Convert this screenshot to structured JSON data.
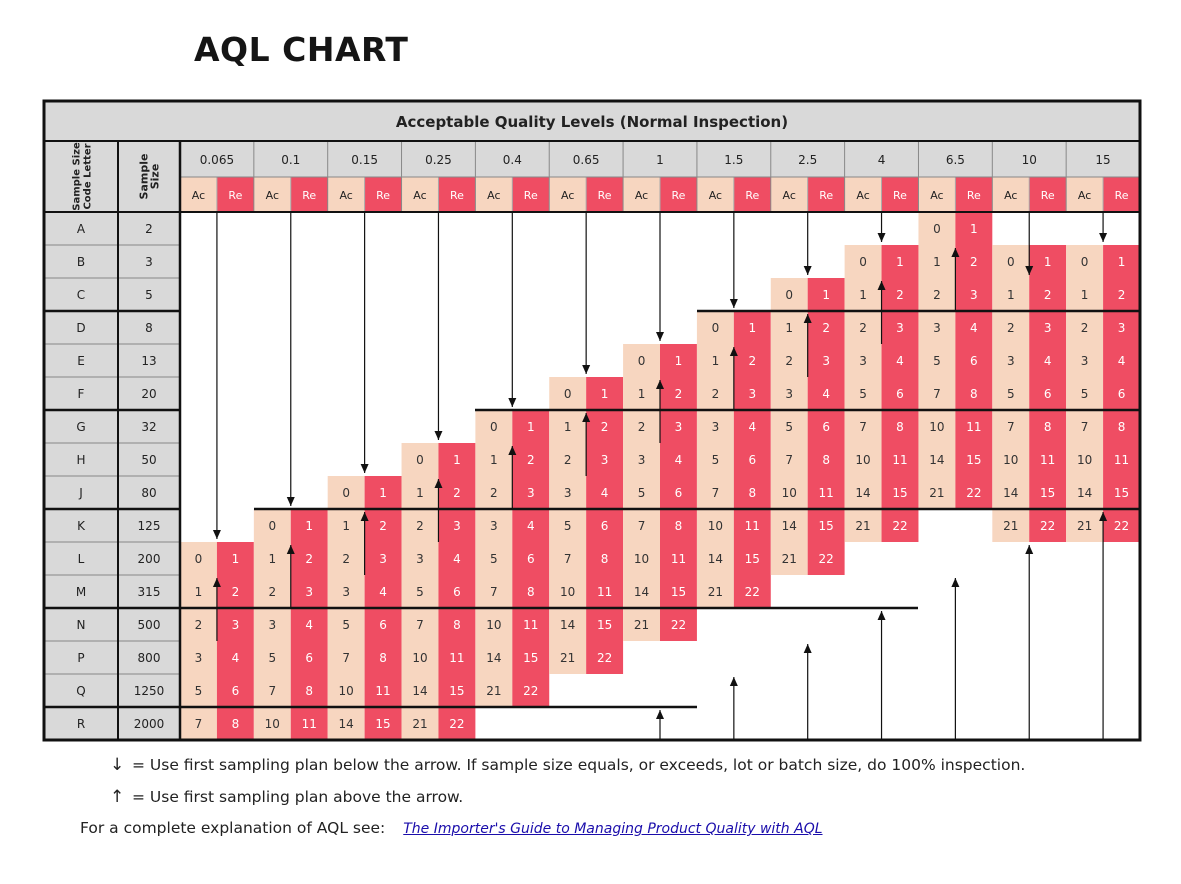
{
  "title": "AQL CHART",
  "table_title": "Acceptable Quality Levels (Normal Inspection)",
  "row_header_1": "Sample Size Code Letter",
  "row_header_2": "Sample Size",
  "ac_label": "Ac",
  "re_label": "Re",
  "aql_levels": [
    "0.065",
    "0.1",
    "0.15",
    "0.25",
    "0.4",
    "0.65",
    "1",
    "1.5",
    "2.5",
    "4",
    "6.5",
    "10",
    "15"
  ],
  "code_letters": [
    "A",
    "B",
    "C",
    "D",
    "E",
    "F",
    "G",
    "H",
    "J",
    "K",
    "L",
    "M",
    "N",
    "P",
    "Q",
    "R"
  ],
  "sample_sizes": [
    "2",
    "3",
    "5",
    "8",
    "13",
    "20",
    "32",
    "50",
    "80",
    "125",
    "200",
    "315",
    "500",
    "800",
    "1250",
    "2000"
  ],
  "acre_pairs": [
    [
      0,
      1
    ],
    [
      1,
      2
    ],
    [
      2,
      3
    ],
    [
      3,
      4
    ],
    [
      5,
      6
    ],
    [
      7,
      8
    ],
    [
      10,
      11
    ],
    [
      14,
      15
    ],
    [
      21,
      22
    ]
  ],
  "plan_start_rows": [
    10,
    9,
    8,
    7,
    6,
    5,
    4,
    3,
    2,
    1,
    0,
    1,
    1
  ],
  "arrows": [
    {
      "col": 0,
      "dir": "down",
      "from_row": 0,
      "to_row": 9
    },
    {
      "col": 0,
      "dir": "up",
      "from_row": 11,
      "to_row": 12
    },
    {
      "col": 1,
      "dir": "down",
      "from_row": 0,
      "to_row": 8
    },
    {
      "col": 1,
      "dir": "up",
      "from_row": 10,
      "to_row": 11
    },
    {
      "col": 2,
      "dir": "down",
      "from_row": 0,
      "to_row": 7
    },
    {
      "col": 2,
      "dir": "up",
      "from_row": 9,
      "to_row": 10
    },
    {
      "col": 3,
      "dir": "down",
      "from_row": 0,
      "to_row": 6
    },
    {
      "col": 3,
      "dir": "up",
      "from_row": 8,
      "to_row": 9
    },
    {
      "col": 4,
      "dir": "down",
      "from_row": 0,
      "to_row": 5
    },
    {
      "col": 4,
      "dir": "up",
      "from_row": 7,
      "to_row": 8
    },
    {
      "col": 5,
      "dir": "down",
      "from_row": 0,
      "to_row": 4
    },
    {
      "col": 5,
      "dir": "up",
      "from_row": 6,
      "to_row": 7
    },
    {
      "col": 6,
      "dir": "down",
      "from_row": 0,
      "to_row": 3
    },
    {
      "col": 6,
      "dir": "up",
      "from_row": 5,
      "to_row": 6
    },
    {
      "col": 6,
      "dir": "up",
      "from_row": 15,
      "to_row": 15
    },
    {
      "col": 7,
      "dir": "down",
      "from_row": 0,
      "to_row": 2
    },
    {
      "col": 7,
      "dir": "up",
      "from_row": 4,
      "to_row": 5
    },
    {
      "col": 7,
      "dir": "up",
      "from_row": 14,
      "to_row": 15
    },
    {
      "col": 8,
      "dir": "down",
      "from_row": 0,
      "to_row": 1
    },
    {
      "col": 8,
      "dir": "up",
      "from_row": 3,
      "to_row": 4
    },
    {
      "col": 8,
      "dir": "up",
      "from_row": 13,
      "to_row": 15
    },
    {
      "col": 9,
      "dir": "down",
      "from_row": 0,
      "to_row": 0
    },
    {
      "col": 9,
      "dir": "up",
      "from_row": 2,
      "to_row": 3
    },
    {
      "col": 9,
      "dir": "up",
      "from_row": 12,
      "to_row": 15
    },
    {
      "col": 10,
      "dir": "up",
      "from_row": 1,
      "to_row": 2
    },
    {
      "col": 10,
      "dir": "up",
      "from_row": 11,
      "to_row": 15
    },
    {
      "col": 11,
      "dir": "down",
      "from_row": 0,
      "to_row": 1
    },
    {
      "col": 11,
      "dir": "up",
      "from_row": 10,
      "to_row": 15
    },
    {
      "col": 12,
      "dir": "down",
      "from_row": 0,
      "to_row": 0
    },
    {
      "col": 12,
      "dir": "up",
      "from_row": 9,
      "to_row": 15
    }
  ],
  "colors": {
    "ac_fill": "#f7d6c0",
    "re_fill": "#ef4d63",
    "header_gray": "#d9d9d9",
    "line": "#111111"
  },
  "legend_down": "= Use first sampling plan below the arrow.  If sample size equals, or exceeds, lot or batch size, do 100% inspection.",
  "legend_up": "= Use first sampling plan above the arrow.",
  "reference_text": "For a complete explanation of AQL see:",
  "reference_link": "The Importer's Guide to Managing Product Quality with AQL"
}
